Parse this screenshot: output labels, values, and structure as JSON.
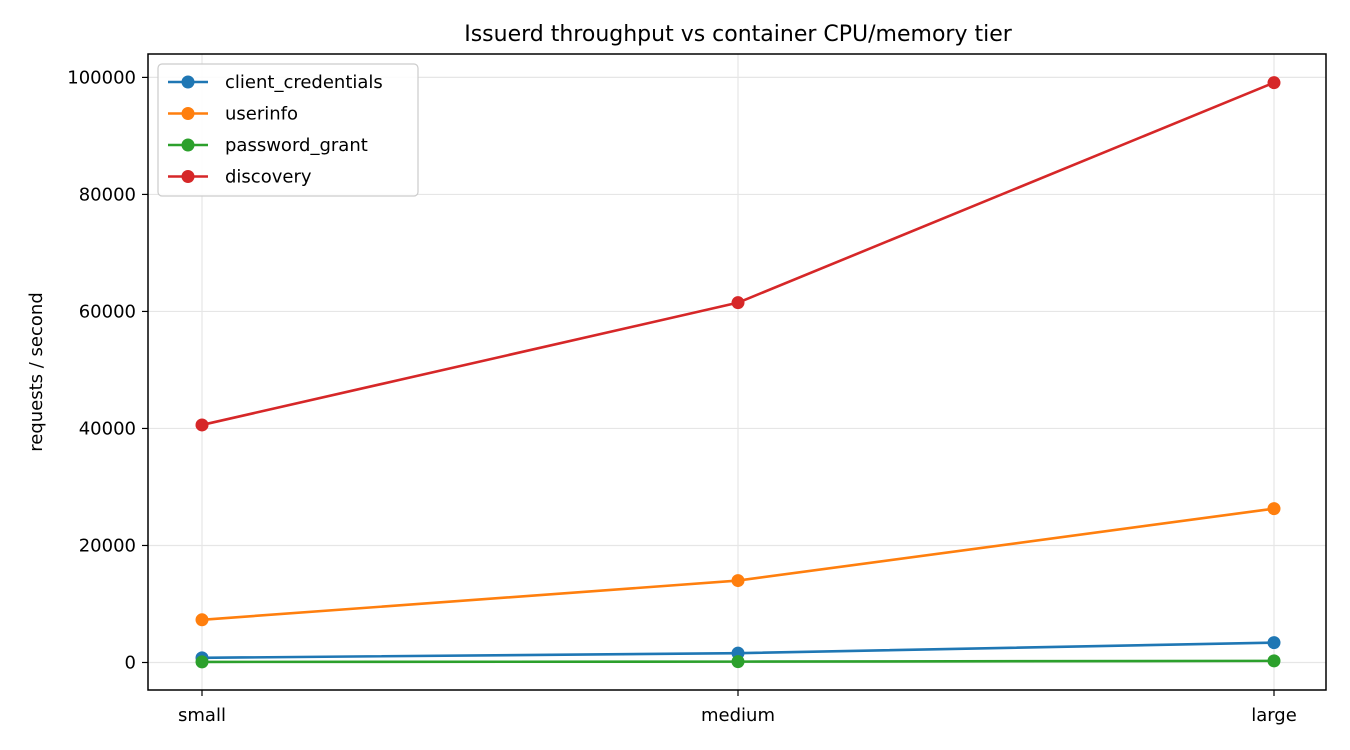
{
  "chart_data": {
    "type": "line",
    "title": "Issuerd throughput vs container CPU/memory tier",
    "xlabel": "",
    "ylabel": "requests / second",
    "categories": [
      "small",
      "medium",
      "large"
    ],
    "ylim": [
      -4700,
      104000
    ],
    "yticks": [
      0,
      20000,
      40000,
      60000,
      80000,
      100000
    ],
    "grid": true,
    "legend_position": "top-left",
    "series": [
      {
        "name": "client_credentials",
        "color": "#1f77b4",
        "values": [
          800,
          1600,
          3400
        ]
      },
      {
        "name": "userinfo",
        "color": "#ff7f0e",
        "values": [
          7300,
          14000,
          26300
        ]
      },
      {
        "name": "password_grant",
        "color": "#2ca02c",
        "values": [
          100,
          150,
          280
        ]
      },
      {
        "name": "discovery",
        "color": "#d62728",
        "values": [
          40600,
          61500,
          99100
        ]
      }
    ]
  }
}
